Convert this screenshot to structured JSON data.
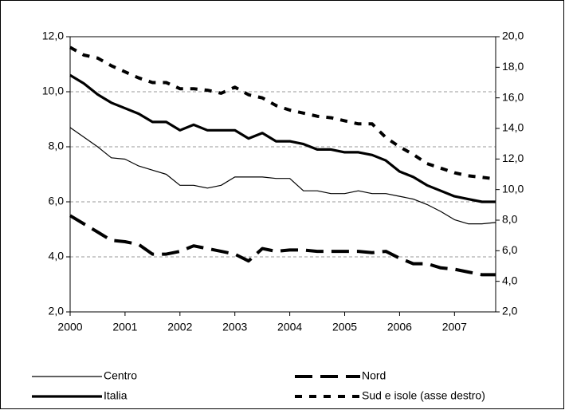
{
  "chart_data": {
    "type": "line",
    "categories": [
      "2000",
      null,
      null,
      null,
      "2001",
      null,
      null,
      null,
      "2002",
      null,
      null,
      null,
      "2003",
      null,
      null,
      null,
      "2004",
      null,
      null,
      null,
      "2005",
      null,
      null,
      null,
      "2006",
      null,
      null,
      null,
      "2007",
      null,
      null,
      null
    ],
    "series": [
      {
        "name": "Centro",
        "color": "#000000",
        "dash": "solid",
        "width": 1.2,
        "values": [
          8.7,
          8.35,
          8.0,
          7.6,
          7.55,
          7.3,
          7.15,
          7.0,
          6.6,
          6.6,
          6.5,
          6.6,
          6.9,
          6.9,
          6.9,
          6.85,
          6.85,
          6.4,
          6.4,
          6.3,
          6.3,
          6.4,
          6.3,
          6.3,
          6.2,
          6.1,
          5.9,
          5.65,
          5.35,
          5.2,
          5.2,
          5.25
        ]
      },
      {
        "name": "Nord",
        "color": "#000000",
        "dash": "long-dash",
        "width": 4,
        "values": [
          5.5,
          5.2,
          4.9,
          4.6,
          4.55,
          4.45,
          4.1,
          4.1,
          4.2,
          4.4,
          4.3,
          4.2,
          4.1,
          3.85,
          4.3,
          4.2,
          4.25,
          4.25,
          4.2,
          4.2,
          4.2,
          4.2,
          4.15,
          4.2,
          3.95,
          3.75,
          3.75,
          3.6,
          3.55,
          3.45,
          3.35,
          3.35
        ]
      },
      {
        "name": "Italia",
        "color": "#000000",
        "dash": "solid",
        "width": 3.2,
        "values": [
          10.6,
          10.3,
          9.9,
          9.6,
          9.4,
          9.2,
          8.9,
          8.9,
          8.6,
          8.8,
          8.6,
          8.6,
          8.6,
          8.3,
          8.5,
          8.2,
          8.2,
          8.1,
          7.9,
          7.9,
          7.8,
          7.8,
          7.7,
          7.5,
          7.1,
          6.9,
          6.6,
          6.4,
          6.2,
          6.1,
          6.0,
          6.0
        ]
      },
      {
        "name": "Sud e isole (asse destro)",
        "color": "#000000",
        "dash": "dash",
        "width": 4,
        "axis": "y2",
        "values": [
          19.3,
          18.8,
          18.6,
          18.1,
          17.7,
          17.3,
          17.0,
          17.0,
          16.6,
          16.6,
          16.5,
          16.3,
          16.7,
          16.2,
          16.0,
          15.5,
          15.2,
          15.0,
          14.8,
          14.7,
          14.5,
          14.3,
          14.3,
          13.4,
          12.8,
          12.3,
          11.7,
          11.4,
          11.1,
          10.9,
          10.8,
          10.7
        ]
      }
    ],
    "ylim": [
      2,
      12
    ],
    "yticks": [
      {
        "value": 2,
        "label": "2,0"
      },
      {
        "value": 4,
        "label": "4,0"
      },
      {
        "value": 6,
        "label": "6,0"
      },
      {
        "value": 8,
        "label": "8,0"
      },
      {
        "value": 10,
        "label": "10,0"
      },
      {
        "value": 12,
        "label": "12,0"
      }
    ],
    "y2lim": [
      2,
      20
    ],
    "y2ticks": [
      {
        "value": 2,
        "label": "2,0"
      },
      {
        "value": 4,
        "label": "4,0"
      },
      {
        "value": 6,
        "label": "6,0"
      },
      {
        "value": 8,
        "label": "8,0"
      },
      {
        "value": 10,
        "label": "10,0"
      },
      {
        "value": 12,
        "label": "12,0"
      },
      {
        "value": 14,
        "label": "14,0"
      },
      {
        "value": 16,
        "label": "16,0"
      },
      {
        "value": 18,
        "label": "18,0"
      },
      {
        "value": 20,
        "label": "20,0"
      }
    ],
    "grid": true,
    "legend": "bottom"
  }
}
